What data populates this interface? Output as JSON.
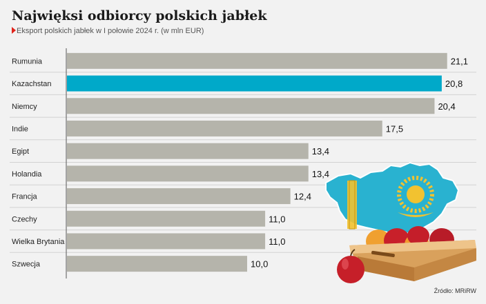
{
  "chart_data": {
    "type": "bar",
    "orientation": "horizontal",
    "title": "Najwięksi odbiorcy polskich  jabłek",
    "subtitle": "Eksport polskich jabłek w I połowie 2024 r. (w mln EUR)",
    "source": "Źródło: MRiRW",
    "categories": [
      "Rumunia",
      "Kazachstan",
      "Niemcy",
      "Indie",
      "Egipt",
      "Holandia",
      "Francja",
      "Czechy",
      "Wielka Brytania",
      "Szwecja"
    ],
    "values": [
      21.1,
      20.8,
      20.4,
      17.5,
      13.4,
      13.4,
      12.4,
      11.0,
      11.0,
      10.0
    ],
    "value_labels": [
      "21,1",
      "20,8",
      "20,4",
      "17,5",
      "13,4",
      "13,4",
      "12,4",
      "11,0",
      "11,0",
      "10,0"
    ],
    "highlight_category": "Kazachstan",
    "colors": {
      "bar": "#b5b4ab",
      "highlight": "#00a9c9",
      "subtitle_marker": "#e0241b",
      "background": "#f2f2f2"
    },
    "grid": true,
    "legend": "none"
  }
}
